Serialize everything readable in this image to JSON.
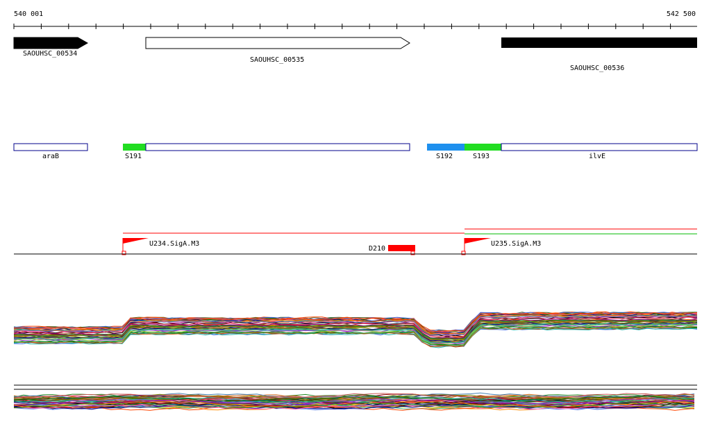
{
  "ruler": {
    "start_label": "540 001",
    "end_label": "542 500"
  },
  "genes": [
    {
      "label": "SAOUHSC_00534",
      "fill": "#000000"
    },
    {
      "label": "SAOUHSC_00535",
      "fill": "#ffffff"
    },
    {
      "label": "SAOUHSC_00536",
      "fill": "#000000"
    }
  ],
  "segments": [
    {
      "label": "araB",
      "color": "#ffffff"
    },
    {
      "label": "S191",
      "color": "#22dd22"
    },
    {
      "label": "S192",
      "color": "#1e90ee"
    },
    {
      "label": "S193",
      "color": "#22dd22"
    },
    {
      "label": "ilvE",
      "color": "#ffffff"
    }
  ],
  "features": [
    {
      "label": "U234.SigA.M3",
      "color": "#ff0000"
    },
    {
      "label": "D210",
      "color": "#ff0000"
    },
    {
      "label": "U235.SigA.M3",
      "color": "#ff0000"
    }
  ],
  "colors": {
    "segment_border": "#00008b",
    "feature": "#ff0000",
    "secondary_line": "#00bb00"
  }
}
